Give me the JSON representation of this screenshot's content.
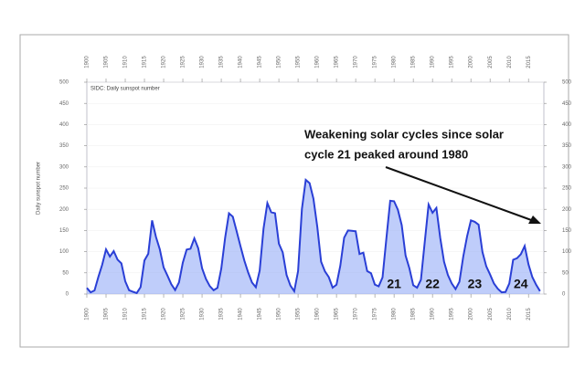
{
  "chart_data": {
    "type": "line",
    "title": "SIDC: Daily sunspot number",
    "y_label": "Daily sunspot number",
    "annotation": [
      "Weakening solar cycles since solar",
      "cycle 21 peaked around 1980"
    ],
    "cycle_labels": [
      {
        "label": "21",
        "x": 1980
      },
      {
        "label": "22",
        "x": 1990
      },
      {
        "label": "23",
        "x": 2001
      },
      {
        "label": "24",
        "x": 2013
      }
    ],
    "x": [
      1900,
      1901,
      1902,
      1903,
      1904,
      1905,
      1906,
      1907,
      1908,
      1909,
      1910,
      1911,
      1912,
      1913,
      1914,
      1915,
      1916,
      1917,
      1918,
      1919,
      1920,
      1921,
      1922,
      1923,
      1924,
      1925,
      1926,
      1927,
      1928,
      1929,
      1930,
      1931,
      1932,
      1933,
      1934,
      1935,
      1936,
      1937,
      1938,
      1939,
      1940,
      1941,
      1942,
      1943,
      1944,
      1945,
      1946,
      1947,
      1948,
      1949,
      1950,
      1951,
      1952,
      1953,
      1954,
      1955,
      1956,
      1957,
      1958,
      1959,
      1960,
      1961,
      1962,
      1963,
      1964,
      1965,
      1966,
      1967,
      1968,
      1969,
      1970,
      1971,
      1972,
      1973,
      1974,
      1975,
      1976,
      1977,
      1978,
      1979,
      1980,
      1981,
      1982,
      1983,
      1984,
      1985,
      1986,
      1987,
      1988,
      1989,
      1990,
      1991,
      1992,
      1993,
      1994,
      1995,
      1996,
      1997,
      1998,
      1999,
      2000,
      2001,
      2002,
      2003,
      2004,
      2005,
      2006,
      2007,
      2008,
      2009,
      2010,
      2011,
      2012,
      2013,
      2014,
      2015,
      2016,
      2017,
      2018
    ],
    "series": [
      {
        "name": "Daily sunspot number",
        "color": "#2a3fd6",
        "fill": "#8aa4f5",
        "values": [
          14.5,
          4.1,
          8.5,
          40.2,
          69.2,
          105.3,
          88.4,
          101.3,
          81.2,
          72.4,
          30.1,
          9.1,
          5.3,
          2.4,
          16.3,
          79.3,
          95.1,
          173.7,
          134.9,
          105.9,
          62.9,
          43.6,
          23.1,
          9.4,
          27.4,
          74.1,
          104.9,
          106.8,
          131.5,
          108.4,
          60.8,
          35.5,
          18.7,
          9.1,
          14.6,
          60.2,
          132.8,
          190.6,
          182.6,
          148.0,
          113.0,
          79.2,
          50.8,
          27.1,
          16.1,
          55.3,
          154.3,
          214.7,
          193.0,
          190.7,
          118.9,
          98.3,
          45.0,
          20.1,
          6.6,
          54.2,
          200.7,
          269.3,
          261.7,
          225.1,
          159.0,
          76.4,
          53.4,
          39.9,
          15.0,
          22.0,
          66.8,
          132.9,
          150.0,
          149.4,
          148.0,
          94.4,
          97.6,
          54.1,
          49.2,
          22.5,
          18.4,
          39.3,
          131.0,
          220.1,
          218.9,
          198.9,
          162.4,
          91.0,
          60.5,
          20.6,
          14.8,
          33.9,
          123.0,
          211.1,
          191.8,
          203.3,
          133.0,
          76.1,
          44.9,
          25.1,
          11.6,
          28.9,
          88.3,
          136.3,
          173.9,
          170.4,
          163.6,
          99.3,
          65.3,
          45.8,
          24.7,
          12.6,
          4.2,
          4.8,
          24.9,
          80.8,
          84.5,
          94.0,
          113.3,
          69.8,
          39.8,
          21.7,
          7.0
        ]
      }
    ],
    "xlim": [
      1900,
      2019
    ],
    "xticks": [
      1900,
      1905,
      1910,
      1915,
      1920,
      1925,
      1930,
      1935,
      1940,
      1945,
      1950,
      1955,
      1960,
      1965,
      1970,
      1975,
      1980,
      1985,
      1990,
      1995,
      2000,
      2005,
      2010,
      2015
    ],
    "ylim": [
      0,
      500
    ],
    "yticks": [
      0,
      50,
      100,
      150,
      200,
      250,
      300,
      350,
      400,
      450,
      500
    ],
    "grid": true
  }
}
